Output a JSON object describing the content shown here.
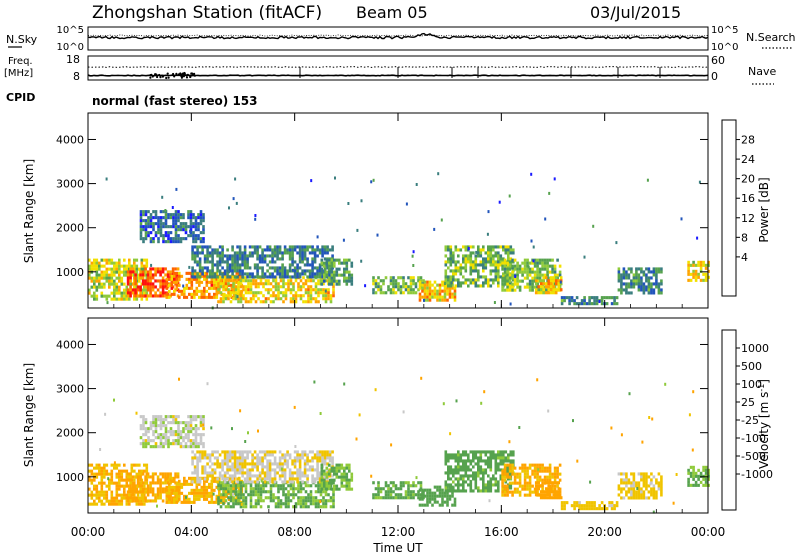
{
  "header": {
    "station": "Zhongshan Station (fitACF)",
    "beam": "Beam 05",
    "date": "03/Jul/2015"
  },
  "top_panels": {
    "nsky_label": "N.Sky",
    "nsky_ticks": [
      "10^5",
      "10^0"
    ],
    "nsearch_label": "N.Search",
    "nsearch_ticks": [
      "10^5",
      "10^0"
    ],
    "freq_label": "Freq.",
    "freq_unit": "[MHz]",
    "freq_ticks": [
      "18",
      "8"
    ],
    "nave_label": "Nave",
    "nave_ticks": [
      "60",
      "0"
    ],
    "cpid_label": "CPID",
    "cpid_text": "normal (fast stereo) 153"
  },
  "axes": {
    "ylabel": "Slant Range [km]",
    "yticks": [
      "4000",
      "3000",
      "2000",
      "1000"
    ],
    "xlabel": "Time UT",
    "xticks": [
      "00:00",
      "04:00",
      "08:00",
      "12:00",
      "16:00",
      "20:00",
      "00:00"
    ]
  },
  "colors": {
    "power": [
      "#1a1aff",
      "#2255bb",
      "#3a7e7e",
      "#56a24e",
      "#8fca3a",
      "#f2e000",
      "#ffa400",
      "#ff6400",
      "#ff1010"
    ],
    "velocity": [
      "#ff1010",
      "#ff6400",
      "#ffa400",
      "#f0c400",
      "#c8c8c8",
      "#8fca3a",
      "#56a24e",
      "#3a7e7e",
      "#2255bb",
      "#1a1aff"
    ]
  },
  "colorbars": {
    "power": {
      "label": "Power [dB]",
      "ticks": [
        "28",
        "24",
        "20",
        "16",
        "12",
        "8",
        "4"
      ]
    },
    "velocity": {
      "label": "Velocity [m s",
      "label_sup": "-1",
      "label_end": "]",
      "ticks": [
        "1000",
        "500",
        "100",
        "25",
        "-25",
        "-100",
        "-500",
        "-1000"
      ]
    }
  },
  "chart_data": [
    {
      "type": "heatmap",
      "quantity": "Power",
      "unit": "dB",
      "x_range": [
        "00:00",
        "00:00"
      ],
      "y_range": [
        180,
        4600
      ],
      "value_range": [
        0,
        32
      ],
      "regions": [
        {
          "t": [
            0.0,
            2.3
          ],
          "r": [
            350,
            1300
          ],
          "v": 18
        },
        {
          "t": [
            1.5,
            3.5
          ],
          "r": [
            450,
            1100
          ],
          "v": 27
        },
        {
          "t": [
            3.0,
            6.0
          ],
          "r": [
            400,
            1000
          ],
          "v": 24
        },
        {
          "t": [
            5.0,
            9.5
          ],
          "r": [
            300,
            900
          ],
          "v": 20
        },
        {
          "t": [
            4.0,
            9.5
          ],
          "r": [
            900,
            1600
          ],
          "v": 9
        },
        {
          "t": [
            2.0,
            4.5
          ],
          "r": [
            1700,
            2400
          ],
          "v": 7
        },
        {
          "t": [
            9.0,
            10.2
          ],
          "r": [
            700,
            1300
          ],
          "v": 12
        },
        {
          "t": [
            11.0,
            13.0
          ],
          "r": [
            500,
            900
          ],
          "v": 14
        },
        {
          "t": [
            12.8,
            14.2
          ],
          "r": [
            350,
            800
          ],
          "v": 21
        },
        {
          "t": [
            13.8,
            16.5
          ],
          "r": [
            650,
            1600
          ],
          "v": 14
        },
        {
          "t": [
            16.0,
            18.3
          ],
          "r": [
            600,
            1300
          ],
          "v": 15
        },
        {
          "t": [
            17.3,
            18.3
          ],
          "r": [
            500,
            900
          ],
          "v": 22
        },
        {
          "t": [
            18.3,
            20.5
          ],
          "r": [
            250,
            450
          ],
          "v": 10
        },
        {
          "t": [
            20.5,
            22.2
          ],
          "r": [
            550,
            1100
          ],
          "v": 10
        },
        {
          "t": [
            23.2,
            24.0
          ],
          "r": [
            800,
            1250
          ],
          "v": 19
        }
      ]
    },
    {
      "type": "heatmap",
      "quantity": "Velocity",
      "unit": "m s^-1",
      "x_range": [
        "00:00",
        "00:00"
      ],
      "y_range": [
        180,
        4600
      ],
      "value_range": [
        -1000,
        1000
      ],
      "regions": [
        {
          "t": [
            0.0,
            2.3
          ],
          "r": [
            350,
            1300
          ],
          "v": -100
        },
        {
          "t": [
            1.5,
            3.5
          ],
          "r": [
            450,
            1100
          ],
          "v": -150
        },
        {
          "t": [
            3.0,
            6.0
          ],
          "r": [
            400,
            1000
          ],
          "v": -100
        },
        {
          "t": [
            5.0,
            9.5
          ],
          "r": [
            300,
            900
          ],
          "v": 120
        },
        {
          "t": [
            4.0,
            9.5
          ],
          "r": [
            900,
            1600
          ],
          "v": -15
        },
        {
          "t": [
            2.0,
            4.5
          ],
          "r": [
            1700,
            2400
          ],
          "v": 10
        },
        {
          "t": [
            9.0,
            10.2
          ],
          "r": [
            700,
            1300
          ],
          "v": 110
        },
        {
          "t": [
            11.0,
            13.0
          ],
          "r": [
            500,
            900
          ],
          "v": 150
        },
        {
          "t": [
            12.8,
            14.2
          ],
          "r": [
            350,
            800
          ],
          "v": 300
        },
        {
          "t": [
            13.8,
            16.5
          ],
          "r": [
            650,
            1600
          ],
          "v": 200
        },
        {
          "t": [
            16.0,
            18.3
          ],
          "r": [
            600,
            1300
          ],
          "v": -120
        },
        {
          "t": [
            17.3,
            18.3
          ],
          "r": [
            500,
            900
          ],
          "v": -300
        },
        {
          "t": [
            18.3,
            20.5
          ],
          "r": [
            250,
            450
          ],
          "v": -60
        },
        {
          "t": [
            20.5,
            22.2
          ],
          "r": [
            550,
            1100
          ],
          "v": -50
        },
        {
          "t": [
            23.2,
            24.0
          ],
          "r": [
            800,
            1250
          ],
          "v": 100
        }
      ]
    }
  ]
}
